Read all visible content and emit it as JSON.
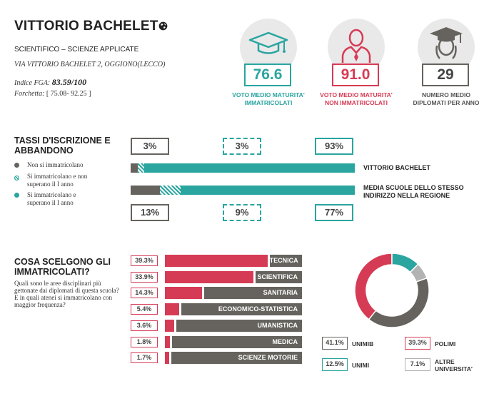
{
  "school": {
    "name": "VITTORIO BACHELET",
    "subtitle": "SCIENTIFICO – SCIENZE APPLICATE",
    "address": "VIA VITTORIO BACHELET 2, OGGIONO(LECCO)",
    "fga_label": "Indice FGA:",
    "fga_value": "83.59/100",
    "forchetta_label": "Forchetta:",
    "forchetta_value": "[ 75.08- 92.25 ]"
  },
  "stats": [
    {
      "value": "76.6",
      "label_1": "VOTO MEDIO MATURITA'",
      "label_2": "IMMATRICOLATI",
      "color": "#2aa5a0",
      "icon": "graduation-cap-icon"
    },
    {
      "value": "91.0",
      "label_1": "VOTO MEDIO MATURITA'",
      "label_2": "NON IMMATRICOLATI",
      "color": "#d63b55",
      "icon": "person-icon"
    },
    {
      "value": "29",
      "label_1": "NUMERO MEDIO",
      "label_2": "DIPLOMATI PER ANNO",
      "color": "#66635e",
      "icon": "graduate-student-icon"
    }
  ],
  "tassi": {
    "title_1": "TASSI D'ISCRIZIONE E",
    "title_2": "ABBANDONO",
    "legend": [
      {
        "label_1": "Non si immatricolano",
        "label_2": "",
        "color": "#66635e"
      },
      {
        "label_1": "Si immatricolano e non",
        "label_2": "superano il I anno",
        "color": "#2aa5a0"
      },
      {
        "label_1": "Si immatricolano e",
        "label_2": "superano il I anno",
        "color": "#2aa5a0"
      }
    ],
    "school_row": {
      "label": "VITTORIO BACHELET",
      "values": [
        "3%",
        "3%",
        "93%"
      ],
      "fractions": [
        0.03,
        0.03,
        0.93
      ]
    },
    "region_row": {
      "label_1": "MEDIA SCUOLE DELLO STESSO",
      "label_2": "INDIRIZZO NELLA REGIONE",
      "values": [
        "13%",
        "9%",
        "77%"
      ],
      "fractions": [
        0.13,
        0.09,
        0.77
      ]
    }
  },
  "scelte": {
    "title_1": "COSA SCELGONO GLI",
    "title_2": "IMMATRICOLATI?",
    "question_1": "Quali sono le aree disciplinari più gettonate dai diplomati di questa scuola?",
    "question_2": "E in quali atenei si immatricolano con maggior frequenza?",
    "areas": [
      {
        "pct": "39.3%",
        "value": 39.3,
        "label": "TECNICA"
      },
      {
        "pct": "33.9%",
        "value": 33.9,
        "label": "SCIENTIFICA"
      },
      {
        "pct": "14.3%",
        "value": 14.3,
        "label": "SANITARIA"
      },
      {
        "pct": "5.4%",
        "value": 5.4,
        "label": "ECONOMICO-STATISTICA"
      },
      {
        "pct": "3.6%",
        "value": 3.6,
        "label": "UMANISTICA"
      },
      {
        "pct": "1.8%",
        "value": 1.8,
        "label": "MEDICA"
      },
      {
        "pct": "1.7%",
        "value": 1.7,
        "label": "SCIENZE MOTORIE"
      }
    ]
  },
  "chart_data": {
    "type": "pie",
    "donut": true,
    "slices": [
      {
        "name": "UNIMIB",
        "pct": "41.1%",
        "value": 41.1,
        "color": "#66635e"
      },
      {
        "name": "POLIMI",
        "pct": "39.3%",
        "value": 39.3,
        "color": "#d63b55"
      },
      {
        "name": "UNIMI",
        "pct": "12.5%",
        "value": 12.5,
        "color": "#2aa5a0"
      },
      {
        "name": "ALTRE UNIVERSITA'",
        "pct": "7.1%",
        "value": 7.1,
        "color": "#b3b3b3"
      }
    ]
  },
  "colors": {
    "gray": "#66635e",
    "teal": "#2aa5a0",
    "red": "#d63b55",
    "light": "#b3b3b3"
  }
}
